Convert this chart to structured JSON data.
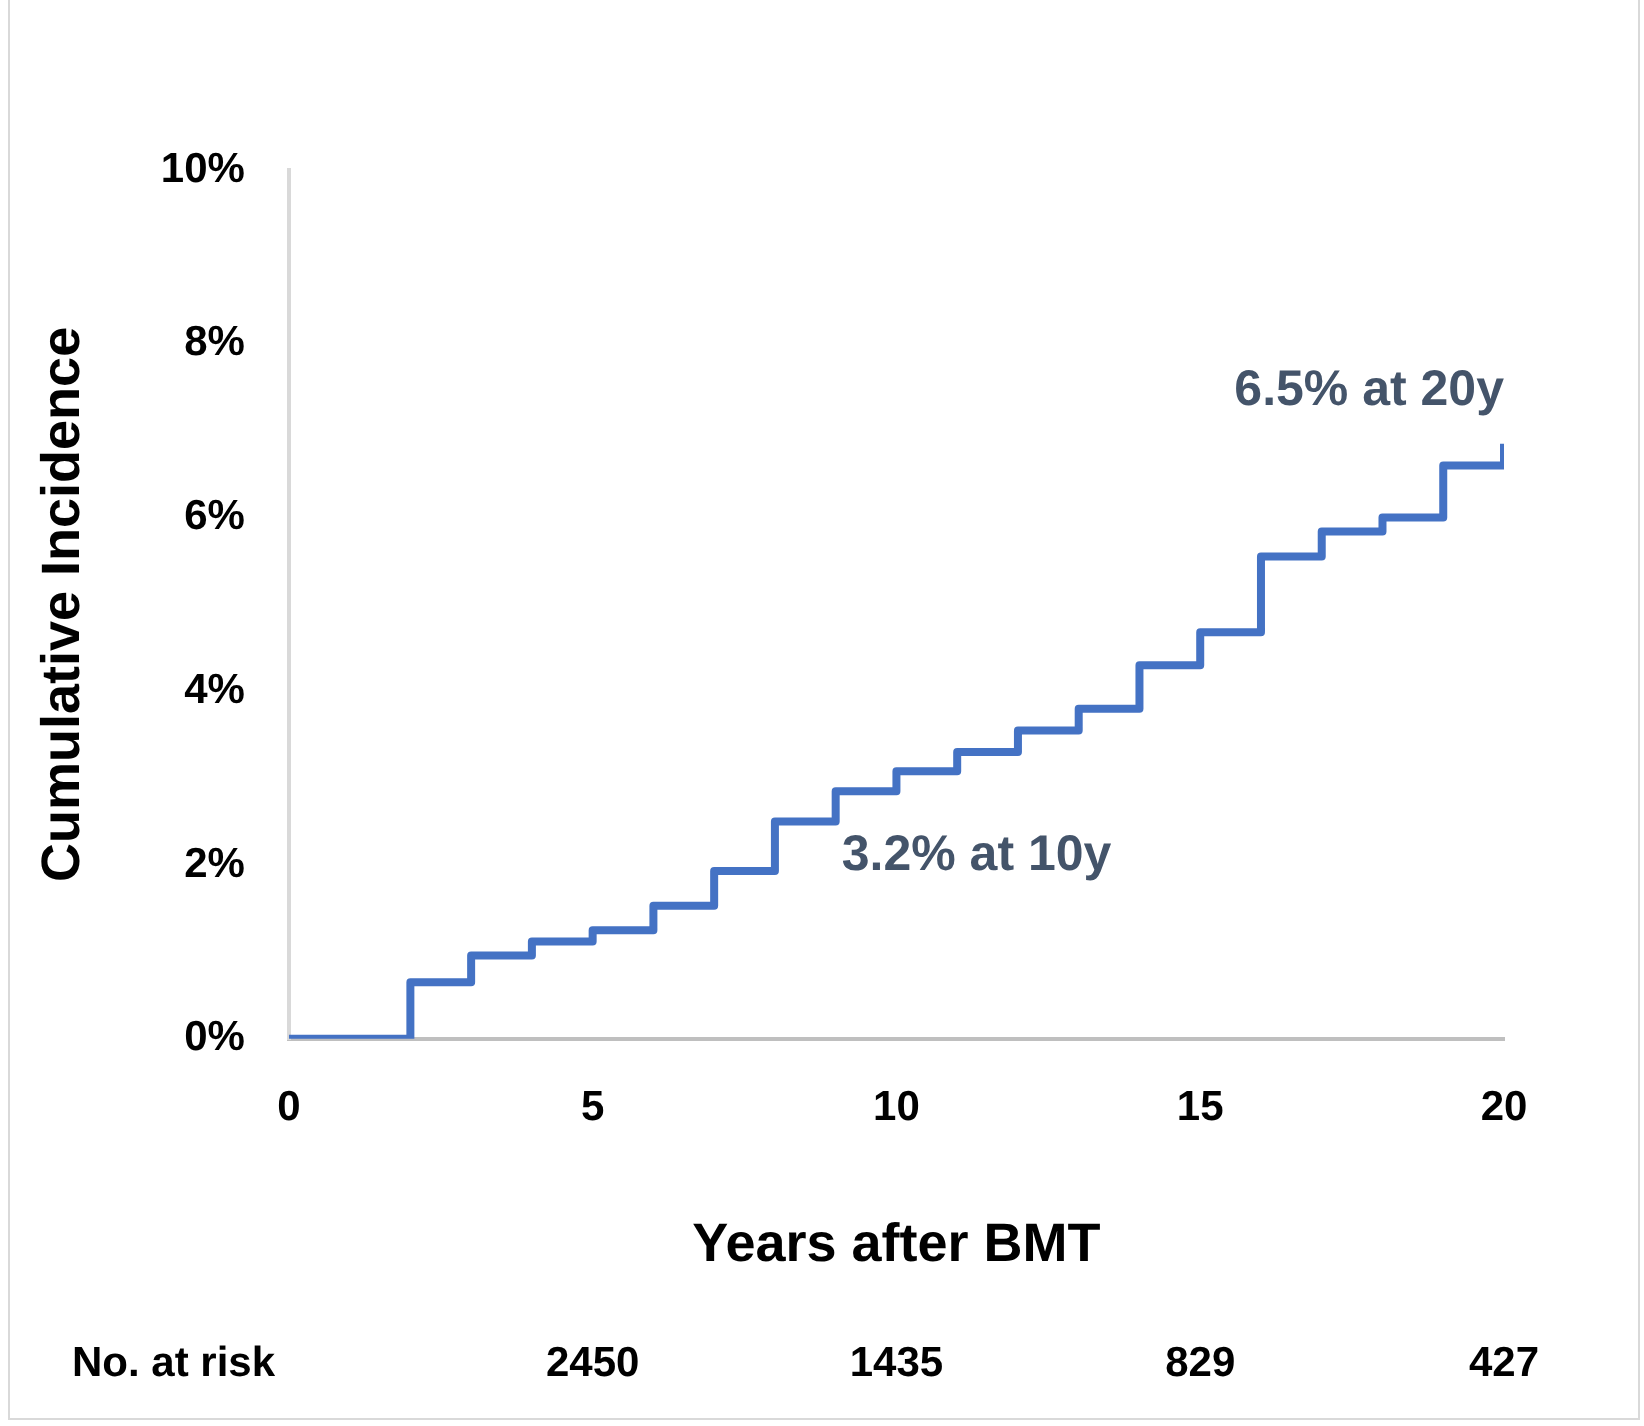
{
  "chart_data": {
    "type": "step",
    "xlabel": "Years after BMT",
    "ylabel": "Cumulative Incidence",
    "x": [
      0,
      1,
      2,
      3,
      4,
      5,
      6,
      7,
      8,
      9,
      10,
      11,
      12,
      13,
      14,
      15,
      16,
      17,
      18,
      19,
      20
    ],
    "series": [
      {
        "color": "#4472c4",
        "values": [
          0,
          0,
          0.65,
          0.96,
          1.12,
          1.25,
          1.53,
          1.93,
          2.5,
          2.85,
          3.08,
          3.3,
          3.55,
          3.8,
          4.3,
          4.68,
          5.55,
          5.84,
          6.0,
          6.6,
          6.85
        ]
      }
    ],
    "xlim": [
      0,
      20
    ],
    "xticks": [
      0,
      5,
      10,
      15,
      20
    ],
    "ylim": [
      0,
      10
    ],
    "yticks": [
      {
        "value": 0,
        "label": "0%"
      },
      {
        "value": 2,
        "label": "2%"
      },
      {
        "value": 4,
        "label": "4%"
      },
      {
        "value": 6,
        "label": "6%"
      },
      {
        "value": 8,
        "label": "8%"
      },
      {
        "value": 10,
        "label": "10%"
      }
    ],
    "grid": false,
    "legend": false,
    "marker": "none",
    "line_style": "solid",
    "annotations": [
      "3.2% at 10y",
      "6.5% at 20y",
      "No. at risk",
      "2450",
      "1435",
      "829",
      "427"
    ]
  }
}
